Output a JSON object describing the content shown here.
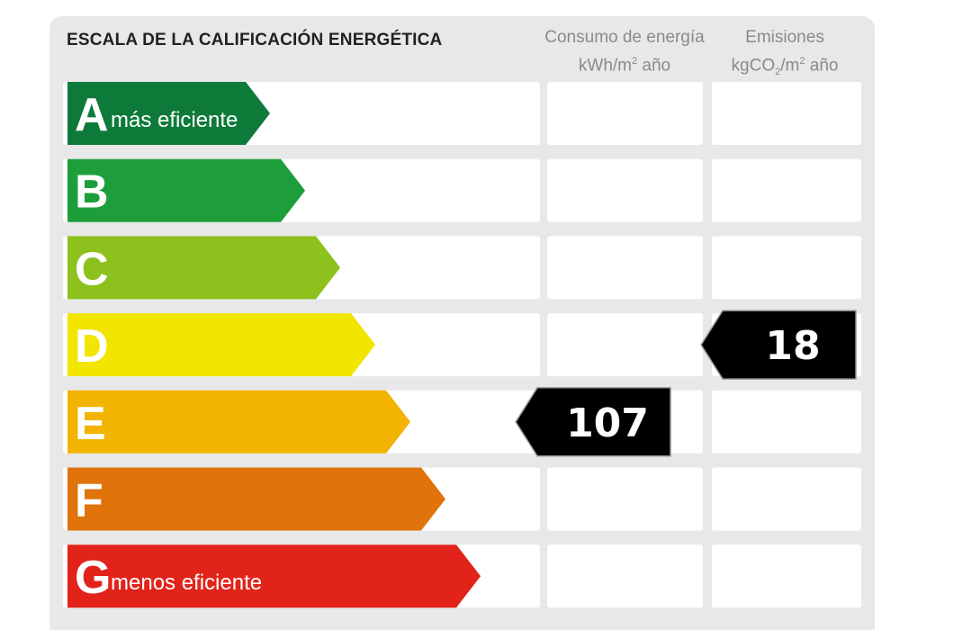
{
  "header": {
    "title": "ESCALA DE LA CALIFICACIÓN ENERGÉTICA",
    "consumo_line1": "Consumo de energía",
    "consumo_line2_pre": "kWh/m",
    "consumo_line2_sup": "2",
    "consumo_line2_post": " año",
    "emisiones_line1": "Emisiones",
    "emisiones_line2_pre": "kgCO",
    "emisiones_line2_sub": "2",
    "emisiones_line2_mid": "/m",
    "emisiones_line2_sup": "2",
    "emisiones_line2_post": " año"
  },
  "chart_data": {
    "type": "table",
    "title": "ESCALA DE LA CALIFICACIÓN ENERGÉTICA",
    "columns": [
      "Consumo de energía kWh/m² año",
      "Emisiones kgCO₂/m² año"
    ],
    "classes": [
      {
        "letter": "A",
        "sublabel": "más eficiente",
        "color": "#0e7a3a"
      },
      {
        "letter": "B",
        "sublabel": "",
        "color": "#1d9e3a"
      },
      {
        "letter": "C",
        "sublabel": "",
        "color": "#8dc11d"
      },
      {
        "letter": "D",
        "sublabel": "",
        "color": "#f2e600"
      },
      {
        "letter": "E",
        "sublabel": "",
        "color": "#f2b400"
      },
      {
        "letter": "F",
        "sublabel": "",
        "color": "#e0730a"
      },
      {
        "letter": "G",
        "sublabel": "menos eficiente",
        "color": "#e2231a"
      }
    ],
    "ratings": [
      {
        "column": "Consumo de energía kWh/m² año",
        "value": "107",
        "class": "E"
      },
      {
        "column": "Emisiones kgCO₂/m² año",
        "value": "18",
        "class": "D"
      }
    ]
  }
}
